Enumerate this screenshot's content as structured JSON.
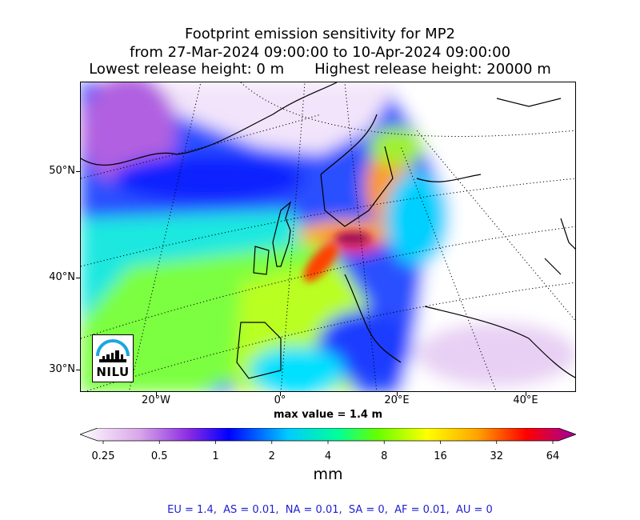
{
  "title": {
    "line1": "Footprint emission sensitivity for MP2",
    "line2": "from 27-Mar-2024 09:00:00 to 10-Apr-2024 09:00:00",
    "line3_left": "Lowest release height: 0 m",
    "line3_right": "Highest release height: 20000 m"
  },
  "map": {
    "lat_labels": [
      "50°N",
      "40°N",
      "30°N"
    ],
    "lon_labels": [
      "20°W",
      "0°",
      "20°E",
      "40°E"
    ],
    "max_value_text": "max value = 1.4 m",
    "logo_text": "NILU"
  },
  "colorbar": {
    "tick_labels": [
      "0.25",
      "0.5",
      "1",
      "2",
      "4",
      "8",
      "16",
      "32",
      "64"
    ],
    "unit": "mm",
    "colors": [
      "#ffffff",
      "#d9a6e8",
      "#8a2be2",
      "#0000ff",
      "#00ccff",
      "#00ff99",
      "#66ff00",
      "#ffff00",
      "#ffa500",
      "#ff0000",
      "#a000a0"
    ]
  },
  "footer": {
    "text": "EU = 1.4,  AS = 0.01,  NA = 0.01,  SA = 0,  AF = 0.01,  AU = 0"
  }
}
